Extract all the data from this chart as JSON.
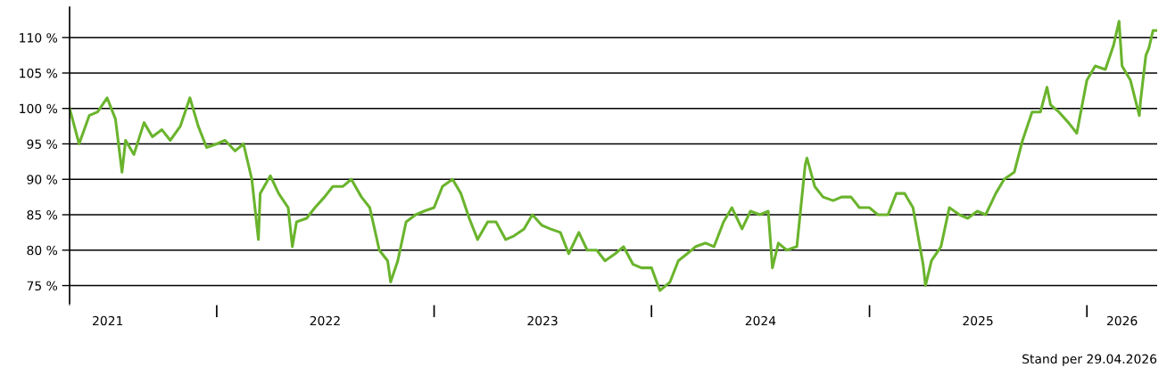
{
  "chart_data": {
    "type": "line",
    "x": [
      "2021-04-29",
      "2021-05-15",
      "2021-06-01",
      "2021-06-15",
      "2021-07-01",
      "2021-07-15",
      "2021-07-26",
      "2021-08-01",
      "2021-08-15",
      "2021-09-01",
      "2021-09-15",
      "2021-10-01",
      "2021-10-15",
      "2021-11-01",
      "2021-11-17",
      "2021-12-01",
      "2021-12-15",
      "2022-01-01",
      "2022-01-15",
      "2022-02-01",
      "2022-02-15",
      "2022-03-01",
      "2022-03-12",
      "2022-03-15",
      "2022-04-01",
      "2022-04-15",
      "2022-05-01",
      "2022-05-08",
      "2022-05-15",
      "2022-06-01",
      "2022-06-15",
      "2022-07-01",
      "2022-07-15",
      "2022-08-01",
      "2022-08-15",
      "2022-09-01",
      "2022-09-15",
      "2022-10-01",
      "2022-10-15",
      "2022-10-20",
      "2022-11-01",
      "2022-11-15",
      "2022-12-01",
      "2022-12-15",
      "2023-01-01",
      "2023-01-15",
      "2023-02-01",
      "2023-02-15",
      "2023-03-01",
      "2023-03-15",
      "2023-04-01",
      "2023-04-15",
      "2023-05-01",
      "2023-05-15",
      "2023-06-01",
      "2023-06-15",
      "2023-07-01",
      "2023-07-15",
      "2023-08-01",
      "2023-08-15",
      "2023-09-01",
      "2023-09-15",
      "2023-10-01",
      "2023-10-15",
      "2023-11-01",
      "2023-11-15",
      "2023-12-01",
      "2023-12-15",
      "2024-01-01",
      "2024-01-15",
      "2024-02-01",
      "2024-02-15",
      "2024-03-01",
      "2024-03-15",
      "2024-04-01",
      "2024-04-15",
      "2024-05-01",
      "2024-05-15",
      "2024-06-01",
      "2024-06-15",
      "2024-07-01",
      "2024-07-15",
      "2024-07-22",
      "2024-08-01",
      "2024-08-15",
      "2024-09-01",
      "2024-09-15",
      "2024-09-18",
      "2024-10-01",
      "2024-10-15",
      "2024-11-01",
      "2024-11-15",
      "2024-12-01",
      "2024-12-15",
      "2025-01-01",
      "2025-01-15",
      "2025-02-01",
      "2025-02-15",
      "2025-03-01",
      "2025-03-15",
      "2025-04-01",
      "2025-04-05",
      "2025-04-15",
      "2025-05-01",
      "2025-05-15",
      "2025-06-01",
      "2025-06-15",
      "2025-07-01",
      "2025-07-15",
      "2025-08-01",
      "2025-08-15",
      "2025-09-01",
      "2025-09-15",
      "2025-10-01",
      "2025-10-15",
      "2025-10-26",
      "2025-11-01",
      "2025-11-15",
      "2025-12-01",
      "2025-12-15",
      "2026-01-01",
      "2026-01-15",
      "2026-02-01",
      "2026-02-15",
      "2026-02-24",
      "2026-03-01",
      "2026-03-15",
      "2026-03-30",
      "2026-04-01",
      "2026-04-10",
      "2026-04-15",
      "2026-04-22",
      "2026-04-29"
    ],
    "series": [
      {
        "color": "#6ab42d",
        "values": [
          100,
          95,
          99,
          99.5,
          101.5,
          98.5,
          91,
          95.5,
          93.5,
          98,
          96,
          97,
          95.5,
          97.5,
          101.5,
          97.5,
          94.5,
          95,
          95.5,
          94,
          95,
          90,
          81.5,
          88,
          90.5,
          88,
          86,
          80.5,
          84,
          84.5,
          86,
          87.5,
          89,
          89,
          90,
          87.5,
          86,
          80,
          78.5,
          75.5,
          78.5,
          84,
          85,
          85.5,
          86,
          89,
          90,
          88,
          84.5,
          81.5,
          84,
          84,
          81.5,
          82,
          83,
          85,
          83.5,
          83,
          82.5,
          79.5,
          82.5,
          80,
          80,
          78.5,
          79.5,
          80.5,
          78,
          77.5,
          77.5,
          74.3,
          75.5,
          78.5,
          79.5,
          80.5,
          81,
          80.5,
          84,
          86,
          83,
          85.5,
          85,
          85.5,
          77.5,
          81,
          80,
          80.5,
          92,
          93,
          89,
          87.5,
          87,
          87.5,
          87.5,
          86,
          86,
          85,
          85,
          88,
          88,
          86,
          78,
          75,
          78.5,
          80.5,
          86,
          85,
          84.5,
          85.5,
          85,
          88,
          90,
          91,
          95.5,
          99.5,
          99.5,
          103,
          100.5,
          99.5,
          98,
          96.5,
          104,
          106,
          105.5,
          109,
          112.3,
          106,
          104,
          99,
          101,
          107.5,
          108.5,
          111,
          111
        ]
      }
    ],
    "xlim": [
      "2021-04-29",
      "2026-04-29"
    ],
    "xticks": [
      {
        "value": "2021-07-02",
        "label": "2021"
      },
      {
        "value": "2022-01-01",
        "label": null
      },
      {
        "value": "2022-07-02",
        "label": "2022"
      },
      {
        "value": "2023-01-01",
        "label": null
      },
      {
        "value": "2023-07-02",
        "label": "2023"
      },
      {
        "value": "2024-01-01",
        "label": null
      },
      {
        "value": "2024-07-02",
        "label": "2024"
      },
      {
        "value": "2025-01-01",
        "label": null
      },
      {
        "value": "2025-07-02",
        "label": "2025"
      },
      {
        "value": "2026-01-01",
        "label": null
      },
      {
        "value": "2026-03-01",
        "label": "2026"
      }
    ],
    "ylim": [
      72.3,
      114.3
    ],
    "yticks": [
      {
        "value": 75,
        "label": "75 %"
      },
      {
        "value": 80,
        "label": "80 %"
      },
      {
        "value": 85,
        "label": "85 %"
      },
      {
        "value": 90,
        "label": "90 %"
      },
      {
        "value": 95,
        "label": "95 %"
      },
      {
        "value": 100,
        "label": "100 %"
      },
      {
        "value": 105,
        "label": "105 %"
      },
      {
        "value": 110,
        "label": "110 %"
      }
    ],
    "grid": "y",
    "marker": "none",
    "line_style": "solid",
    "annotations": [
      "Stand per 29.04.2026"
    ]
  }
}
